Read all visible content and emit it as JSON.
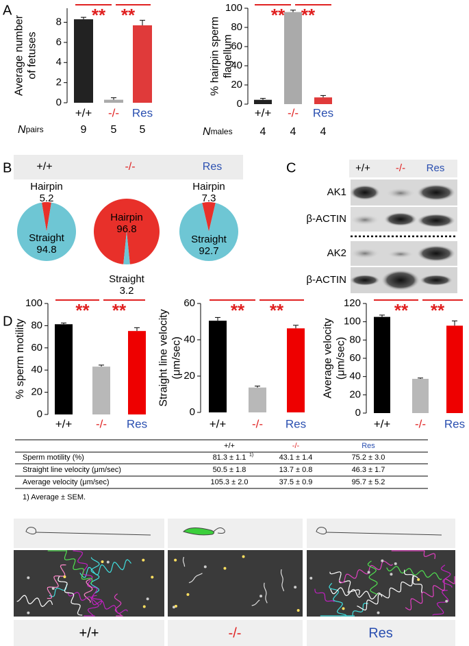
{
  "panels": [
    "A",
    "B",
    "C",
    "D"
  ],
  "chart_data": [
    {
      "type": "bar",
      "ylabel": [
        "Average number",
        "of fetuses"
      ],
      "categories": [
        "+/+",
        "-/-",
        "Res"
      ],
      "category_colors": [
        "#000000",
        "#e02020",
        "#2a4fb0"
      ],
      "values": [
        8.3,
        0.3,
        7.7
      ],
      "errors": [
        0.2,
        0.2,
        0.5
      ],
      "colors": [
        "#222222",
        "#aaaaaa",
        "#e03a3a"
      ],
      "ylim": [
        0,
        9.4
      ],
      "yticks": [
        0,
        2,
        4,
        6,
        8
      ],
      "annotations": [
        "**",
        "**"
      ],
      "annotation_color": "#e02020",
      "n_label": [
        "N",
        "pairs"
      ],
      "n_values": [
        9,
        5,
        5
      ]
    },
    {
      "type": "bar",
      "ylabel": [
        "% hairpin sperm",
        "flagellum"
      ],
      "categories": [
        "+/+",
        "-/-",
        "Res"
      ],
      "category_colors": [
        "#000000",
        "#e02020",
        "#2a4fb0"
      ],
      "values": [
        4.5,
        96,
        7
      ],
      "errors": [
        1.5,
        2,
        2
      ],
      "colors": [
        "#222222",
        "#aaaaaa",
        "#e03a3a"
      ],
      "ylim": [
        0,
        100
      ],
      "yticks": [
        0,
        20,
        40,
        60,
        80,
        100
      ],
      "annotations": [
        "**",
        "**"
      ],
      "annotation_color": "#e02020",
      "n_label": [
        "N",
        "males"
      ],
      "n_values": [
        4,
        4,
        4
      ]
    },
    {
      "type": "pie",
      "header": "+/+",
      "header_color": "#000000",
      "categories": [
        "Hairpin",
        "Straight"
      ],
      "values": [
        5.2,
        94.8
      ],
      "colors": [
        "#e8302a",
        "#6ec6d4"
      ]
    },
    {
      "type": "pie",
      "header": "-/-",
      "header_color": "#e02020",
      "categories": [
        "Hairpin",
        "Straight"
      ],
      "values": [
        96.8,
        3.2
      ],
      "colors": [
        "#e8302a",
        "#6ec6d4"
      ]
    },
    {
      "type": "pie",
      "header": "Res",
      "header_color": "#2a4fb0",
      "categories": [
        "Hairpin",
        "Straight"
      ],
      "values": [
        7.3,
        92.7
      ],
      "colors": [
        "#e8302a",
        "#6ec6d4"
      ]
    },
    {
      "type": "bar",
      "ylabel": [
        "% sperm motility"
      ],
      "categories": [
        "+/+",
        "-/-",
        "Res"
      ],
      "category_colors": [
        "#000000",
        "#e02020",
        "#2a4fb0"
      ],
      "values": [
        81.3,
        43.1,
        75.2
      ],
      "errors": [
        1.1,
        1.4,
        3.0
      ],
      "colors": [
        "#000000",
        "#b8b8b8",
        "#ee0000"
      ],
      "ylim": [
        0,
        100
      ],
      "yticks": [
        0,
        20,
        40,
        60,
        80,
        100
      ],
      "annotations": [
        "**",
        "**"
      ],
      "annotation_color": "#e02020"
    },
    {
      "type": "bar",
      "ylabel": [
        "Straight line velocity",
        "(μm/sec)"
      ],
      "categories": [
        "+/+",
        "-/-",
        "Res"
      ],
      "category_colors": [
        "#000000",
        "#e02020",
        "#2a4fb0"
      ],
      "values": [
        50.5,
        13.7,
        46.3
      ],
      "errors": [
        1.8,
        0.8,
        1.7
      ],
      "colors": [
        "#000000",
        "#b8b8b8",
        "#ee0000"
      ],
      "ylim": [
        0,
        60
      ],
      "yticks": [
        0,
        20,
        40,
        60
      ],
      "annotations": [
        "**",
        "**"
      ],
      "annotation_color": "#e02020"
    },
    {
      "type": "bar",
      "ylabel": [
        "Average velocity",
        "(μm/sec)"
      ],
      "categories": [
        "+/+",
        "-/-",
        "Res"
      ],
      "category_colors": [
        "#000000",
        "#e02020",
        "#2a4fb0"
      ],
      "values": [
        105.3,
        37.5,
        95.7
      ],
      "errors": [
        2.0,
        0.9,
        5.2
      ],
      "colors": [
        "#000000",
        "#b8b8b8",
        "#ee0000"
      ],
      "ylim": [
        0,
        120
      ],
      "yticks": [
        0,
        20,
        40,
        60,
        80,
        100,
        120
      ],
      "annotations": [
        "**",
        "**"
      ],
      "annotation_color": "#e02020"
    }
  ],
  "blot": {
    "lanes": [
      "+/+",
      "-/-",
      "Res"
    ],
    "lane_colors": [
      "#000000",
      "#e02020",
      "#2a4fb0"
    ],
    "rows": [
      "AK1",
      "β-ACTIN",
      "AK2",
      "β-ACTIN"
    ]
  },
  "table": {
    "header": [
      "+/+",
      "-/-",
      "Res"
    ],
    "header_colors": [
      "#000000",
      "#e02020",
      "#2a4fb0"
    ],
    "rows": [
      [
        "Sperm motility (%)",
        "81.3 ± 1.1",
        "43.1 ± 1.4",
        "75.2 ± 3.0"
      ],
      [
        "Straight line velocity (μm/sec)",
        "50.5 ± 1.8",
        "13.7 ± 0.8",
        "46.3 ± 1.7"
      ],
      [
        "Average velocity (μm/sec)",
        "105.3 ± 2.0",
        "37.5 ± 0.9",
        "95.7 ± 5.2"
      ]
    ],
    "note_ref": "1)",
    "footnote": "1) Average ± SEM."
  },
  "tracks": {
    "labels": [
      "+/+",
      "-/-",
      "Res"
    ],
    "label_colors": [
      "#000000",
      "#e02020",
      "#2a4fb0"
    ]
  }
}
